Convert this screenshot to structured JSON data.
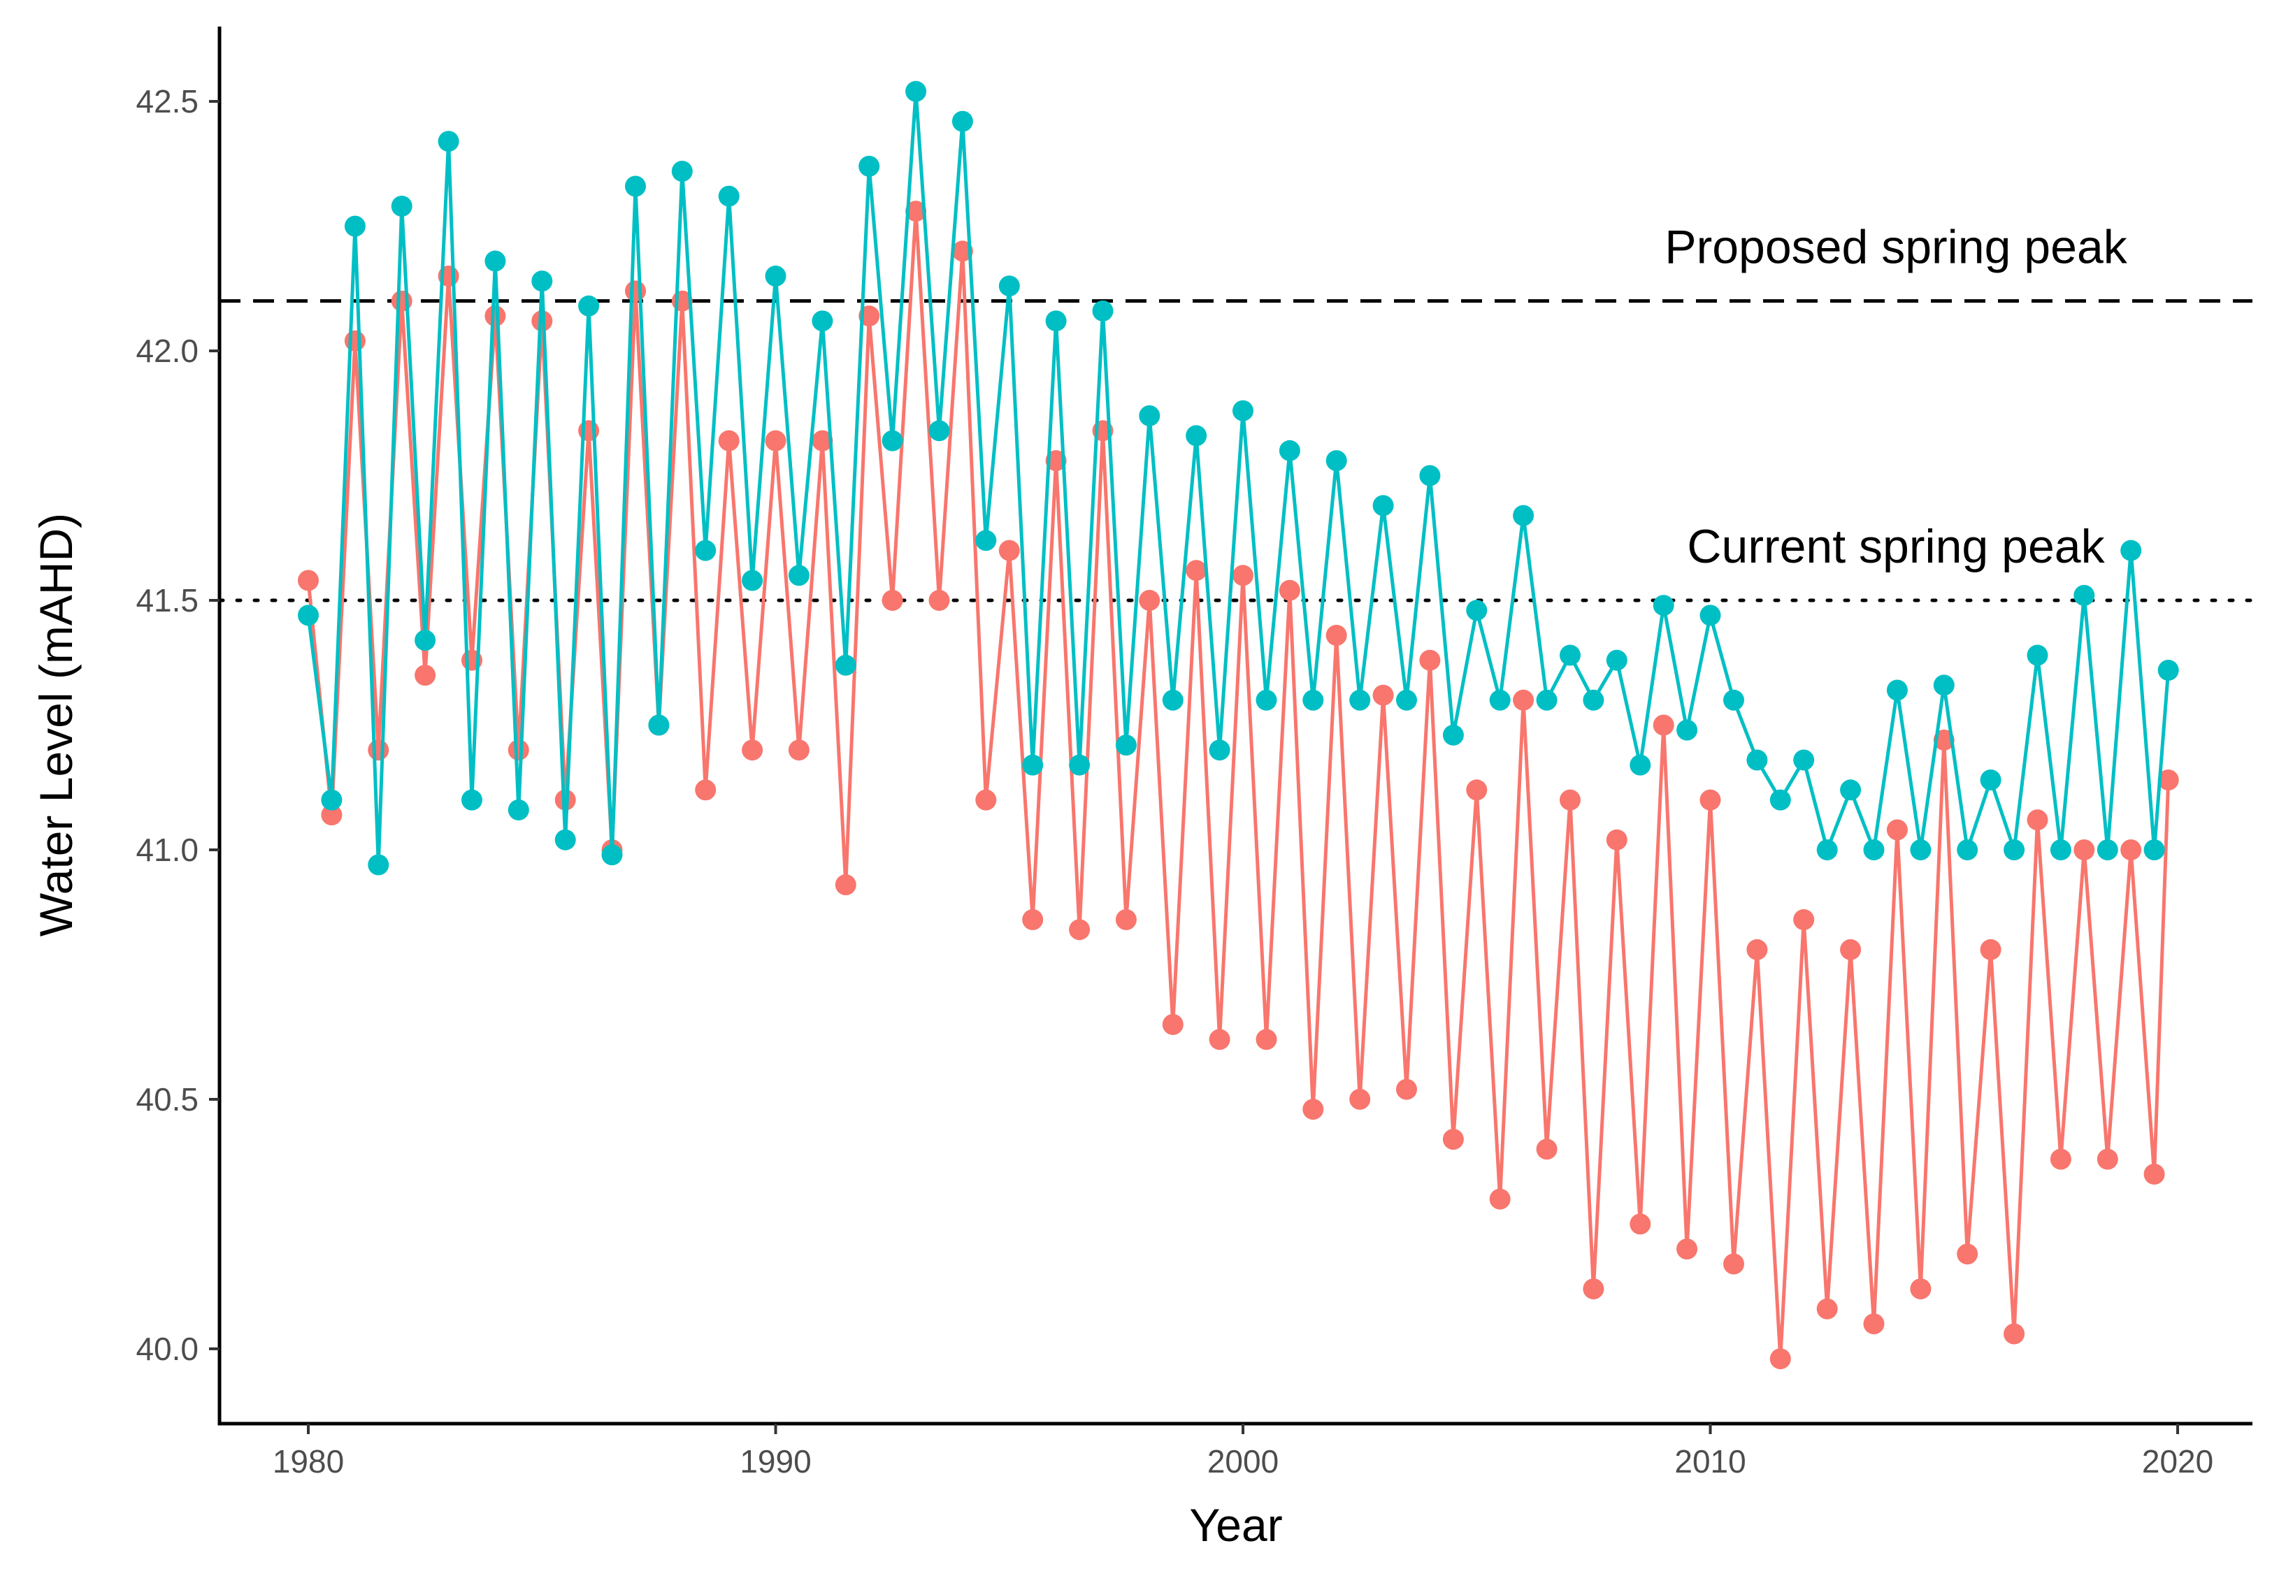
{
  "chart_data": {
    "type": "line",
    "xlabel": "Year",
    "ylabel": "Water Level (mAHD)",
    "xlim": [
      1978.1,
      2021.6
    ],
    "ylim": [
      39.85,
      42.65
    ],
    "x_ticks": [
      1980,
      1990,
      2000,
      2010,
      2020
    ],
    "x_tick_labels": [
      "1980",
      "1990",
      "2000",
      "2010",
      "2020"
    ],
    "y_ticks": [
      40.0,
      40.5,
      41.0,
      41.5,
      42.0,
      42.5
    ],
    "y_tick_labels": [
      "40.0",
      "40.5",
      "41.0",
      "41.5",
      "42.0",
      "42.5"
    ],
    "grid": false,
    "legend": "none",
    "markers": "filled circles joined by lines",
    "reference_lines": [
      {
        "label": "Proposed spring peak",
        "y": 42.1,
        "style": "dashed",
        "color": "#000000"
      },
      {
        "label": "Current spring peak",
        "y": 41.5,
        "style": "dotted",
        "color": "#000000"
      }
    ],
    "series": [
      {
        "color": "#F8766D",
        "x": [
          1980.0,
          1980.5,
          1981.0,
          1981.5,
          1982.0,
          1982.5,
          1983.0,
          1983.5,
          1984.0,
          1984.5,
          1985.0,
          1985.5,
          1986.0,
          1986.5,
          1987.0,
          1987.5,
          1988.0,
          1988.5,
          1989.0,
          1989.5,
          1990.0,
          1990.5,
          1991.0,
          1991.5,
          1992.0,
          1992.5,
          1993.0,
          1993.5,
          1994.0,
          1994.5,
          1995.0,
          1995.5,
          1996.0,
          1996.5,
          1997.0,
          1997.5,
          1998.0,
          1998.5,
          1999.0,
          1999.5,
          2000.0,
          2000.5,
          2001.0,
          2001.5,
          2002.0,
          2002.5,
          2003.0,
          2003.5,
          2004.0,
          2004.5,
          2005.0,
          2005.5,
          2006.0,
          2006.5,
          2007.0,
          2007.5,
          2008.0,
          2008.5,
          2009.0,
          2009.5,
          2010.0,
          2010.5,
          2011.0,
          2011.5,
          2012.0,
          2012.5,
          2013.0,
          2013.5,
          2014.0,
          2014.5,
          2015.0,
          2015.5,
          2016.0,
          2016.5,
          2017.0,
          2017.5,
          2018.0,
          2018.5,
          2019.0,
          2019.5,
          2019.8
        ],
        "values": [
          41.54,
          41.07,
          42.02,
          41.2,
          42.1,
          41.35,
          42.15,
          41.38,
          42.07,
          41.2,
          42.06,
          41.1,
          41.84,
          41.0,
          42.12,
          41.25,
          42.1,
          41.12,
          41.82,
          41.2,
          41.82,
          41.2,
          41.82,
          40.93,
          42.07,
          41.5,
          42.28,
          41.5,
          42.2,
          41.1,
          41.6,
          40.86,
          41.78,
          40.84,
          41.84,
          40.86,
          41.5,
          40.65,
          41.56,
          40.62,
          41.55,
          40.62,
          41.52,
          40.48,
          41.43,
          40.5,
          41.31,
          40.52,
          41.38,
          40.42,
          41.12,
          40.3,
          41.3,
          40.4,
          41.1,
          40.12,
          41.02,
          40.25,
          41.25,
          40.2,
          41.1,
          40.17,
          40.8,
          39.98,
          40.86,
          40.08,
          40.8,
          40.05,
          41.04,
          40.12,
          41.22,
          40.19,
          40.8,
          40.03,
          41.06,
          40.38,
          41.0,
          40.38,
          41.0,
          40.35,
          41.14
        ]
      },
      {
        "color": "#00BFC4",
        "x": [
          1980.0,
          1980.5,
          1981.0,
          1981.5,
          1982.0,
          1982.5,
          1983.0,
          1983.5,
          1984.0,
          1984.5,
          1985.0,
          1985.5,
          1986.0,
          1986.5,
          1987.0,
          1987.5,
          1988.0,
          1988.5,
          1989.0,
          1989.5,
          1990.0,
          1990.5,
          1991.0,
          1991.5,
          1992.0,
          1992.5,
          1993.0,
          1993.5,
          1994.0,
          1994.5,
          1995.0,
          1995.5,
          1996.0,
          1996.5,
          1997.0,
          1997.5,
          1998.0,
          1998.5,
          1999.0,
          1999.5,
          2000.0,
          2000.5,
          2001.0,
          2001.5,
          2002.0,
          2002.5,
          2003.0,
          2003.5,
          2004.0,
          2004.5,
          2005.0,
          2005.5,
          2006.0,
          2006.5,
          2007.0,
          2007.5,
          2008.0,
          2008.5,
          2009.0,
          2009.5,
          2010.0,
          2010.5,
          2011.0,
          2011.5,
          2012.0,
          2012.5,
          2013.0,
          2013.5,
          2014.0,
          2014.5,
          2015.0,
          2015.5,
          2016.0,
          2016.5,
          2017.0,
          2017.5,
          2018.0,
          2018.5,
          2019.0,
          2019.5,
          2019.8
        ],
        "values": [
          41.47,
          41.1,
          42.25,
          40.97,
          42.29,
          41.42,
          42.42,
          41.1,
          42.18,
          41.08,
          42.14,
          41.02,
          42.09,
          40.99,
          42.33,
          41.25,
          42.36,
          41.6,
          42.31,
          41.54,
          42.15,
          41.55,
          42.06,
          41.37,
          42.37,
          41.82,
          42.52,
          41.84,
          42.46,
          41.62,
          42.13,
          41.17,
          42.06,
          41.17,
          42.08,
          41.21,
          41.87,
          41.3,
          41.83,
          41.2,
          41.88,
          41.3,
          41.8,
          41.3,
          41.78,
          41.3,
          41.69,
          41.3,
          41.75,
          41.23,
          41.48,
          41.3,
          41.67,
          41.3,
          41.39,
          41.3,
          41.38,
          41.17,
          41.49,
          41.24,
          41.47,
          41.3,
          41.18,
          41.1,
          41.18,
          41.0,
          41.12,
          41.0,
          41.32,
          41.0,
          41.33,
          41.0,
          41.14,
          41.0,
          41.39,
          41.0,
          41.51,
          41.0,
          41.6,
          41.0,
          41.36
        ]
      }
    ]
  }
}
